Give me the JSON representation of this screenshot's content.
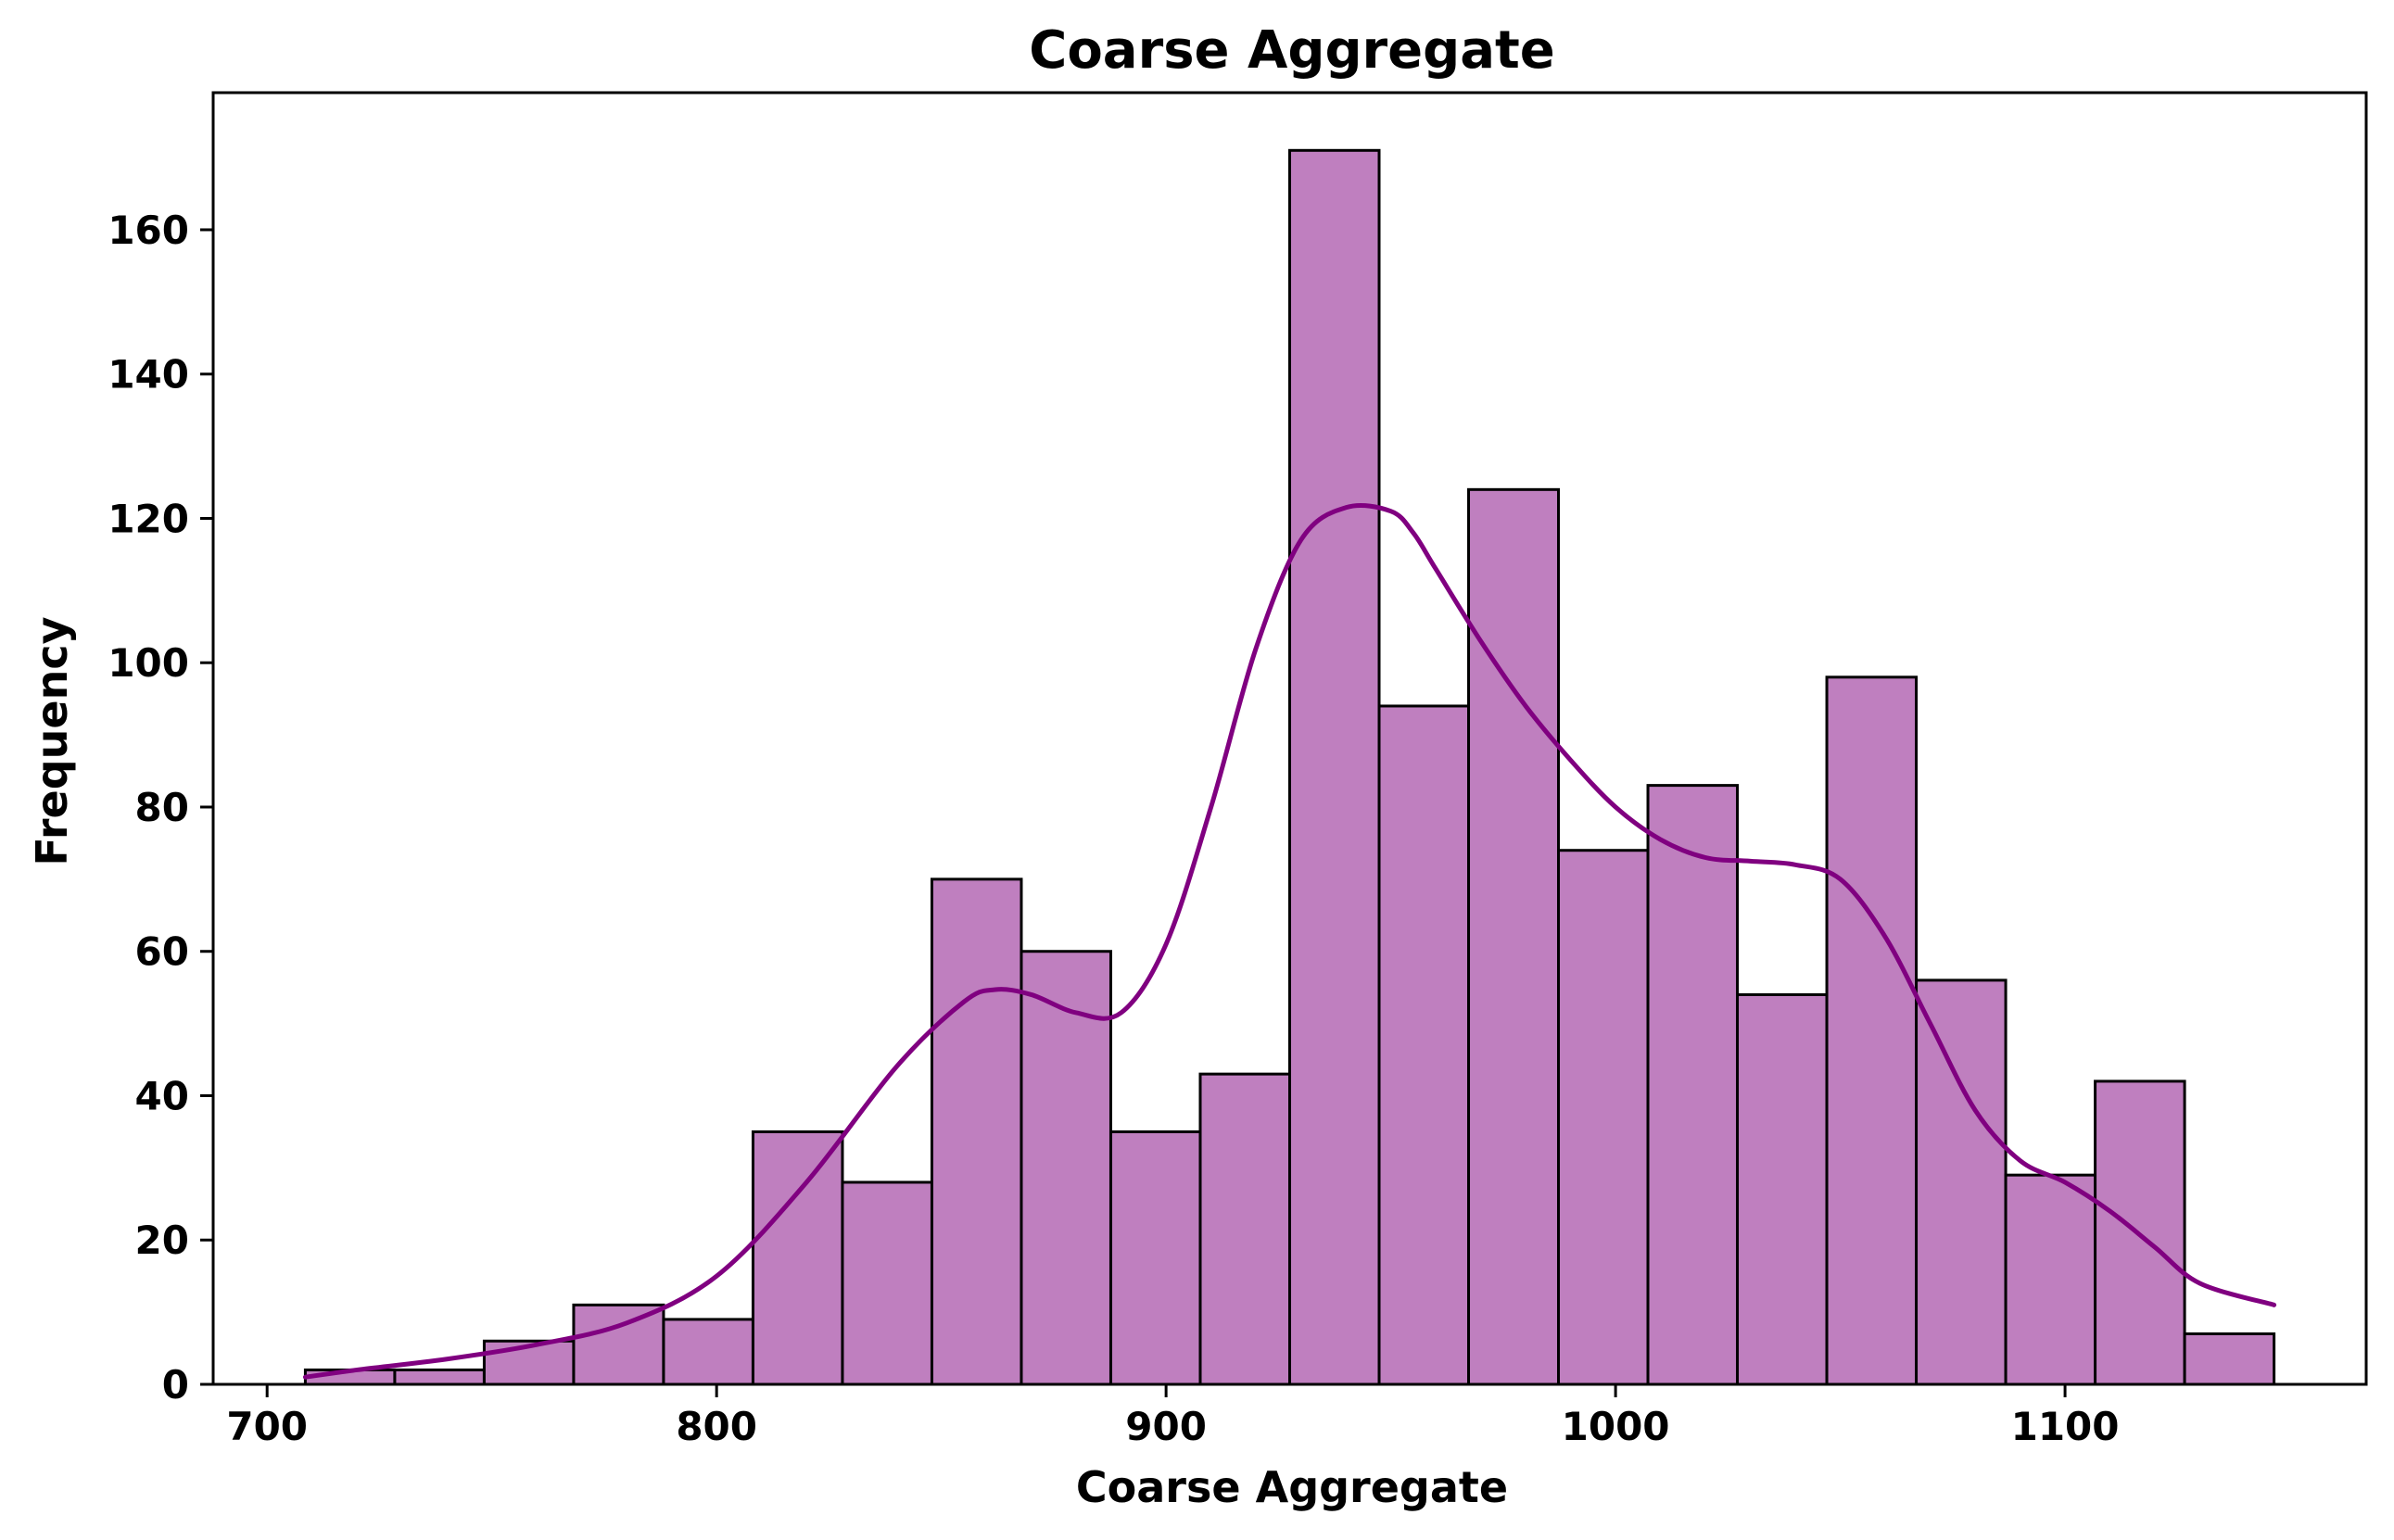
{
  "chart_data": {
    "type": "bar",
    "title": "Coarse Aggregate",
    "xlabel": "Coarse Aggregate",
    "ylabel": "Frequency",
    "xlim": [
      688,
      1167
    ],
    "ylim": [
      0,
      179
    ],
    "xticks": [
      700,
      800,
      900,
      1000,
      1100
    ],
    "yticks": [
      0,
      20,
      40,
      60,
      80,
      100,
      120,
      140,
      160
    ],
    "grid": false,
    "legend": "none",
    "bin_edges": [
      708.5,
      728.4,
      748.3,
      768.2,
      788.2,
      808.1,
      828.0,
      847.9,
      867.8,
      887.7,
      907.6,
      927.5,
      947.4,
      967.3,
      987.3,
      1007.2,
      1027.1,
      1047.0,
      1066.9,
      1086.8,
      1106.7,
      1126.6,
      1146.5
    ],
    "values": [
      2,
      2,
      6,
      11,
      9,
      35,
      28,
      70,
      60,
      35,
      43,
      171,
      94,
      124,
      74,
      83,
      54,
      98,
      56,
      29,
      42,
      7
    ],
    "kde": {
      "x": [
        708.5,
        720,
        740,
        760,
        780,
        800,
        820,
        840,
        855,
        862,
        870,
        880,
        890,
        900,
        910,
        920,
        930,
        940,
        950,
        955,
        960,
        970,
        980,
        990,
        1000,
        1010,
        1020,
        1030,
        1040,
        1050,
        1060,
        1070,
        1080,
        1090,
        1100,
        1110,
        1120,
        1130,
        1146.5
      ],
      "y": [
        1,
        2,
        3.5,
        5.5,
        8.5,
        15,
        28,
        44,
        53,
        54.7,
        54,
        51.5,
        51.5,
        61,
        80,
        102,
        117,
        121.5,
        121,
        118,
        113,
        103,
        94,
        86.5,
        80,
        75.5,
        73,
        72.5,
        72,
        70,
        62,
        50,
        38,
        31,
        28,
        24,
        19,
        14,
        11
      ]
    },
    "colors": {
      "bar_fill": "#bf7fbf",
      "bar_edge": "#000000",
      "kde_line": "#800080"
    }
  }
}
